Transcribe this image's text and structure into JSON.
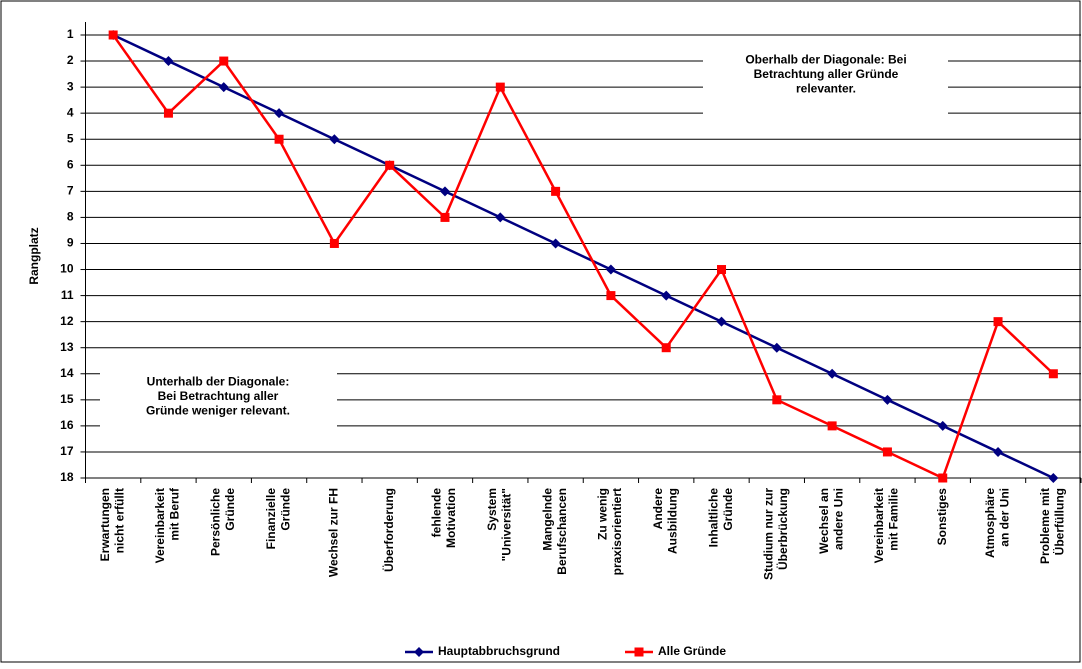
{
  "chart_data": {
    "type": "line",
    "y_axis_label": "Rangplatz",
    "categories": [
      "Erwartungen\nnicht erfüllt",
      "Vereinbarkeit\nmit Beruf",
      "Persönliche\nGründe",
      "Finanzielle\nGründe",
      "Wechsel zur FH",
      "Überforderung",
      "fehlende\nMotivation",
      "System\n\"Universität\"",
      "Mangelnde\nBerufschancen",
      "Zu wenig\npraxisorientiert",
      "Andere\nAusbildung",
      "Inhaltliche\nGründe",
      "Studium nur zur\nÜberbrückung",
      "Wechsel an\nandere Uni",
      "Vereinbarkeit\nmit Familie",
      "Sonstiges",
      "Atmosphäre\nan der Uni",
      "Probleme mit\nÜberfüllung"
    ],
    "series": [
      {
        "name": "Hauptabbruchsgrund",
        "color": "#000080",
        "marker": "diamond",
        "values": [
          1,
          2,
          3,
          4,
          5,
          6,
          7,
          8,
          9,
          10,
          11,
          12,
          13,
          14,
          15,
          16,
          17,
          18
        ]
      },
      {
        "name": "Alle Gründe",
        "color": "#ff0000",
        "marker": "square",
        "values": [
          1,
          4,
          2,
          5,
          9,
          6,
          8,
          3,
          7,
          11,
          13,
          10,
          15,
          16,
          17,
          18,
          12,
          14
        ]
      }
    ],
    "ylim": [
      1,
      18
    ],
    "y_inverted": true,
    "yticks": [
      1,
      2,
      3,
      4,
      5,
      6,
      7,
      8,
      9,
      10,
      11,
      12,
      13,
      14,
      15,
      16,
      17,
      18
    ],
    "grid": true,
    "legend": "bottom",
    "annotations": [
      "Oberhalb der Diagonale: Bei\nBetrachtung aller Gründe\nrelevanter.",
      "Unterhalb der Diagonale:\nBei Betrachtung aller\nGründe weniger relevant."
    ]
  }
}
